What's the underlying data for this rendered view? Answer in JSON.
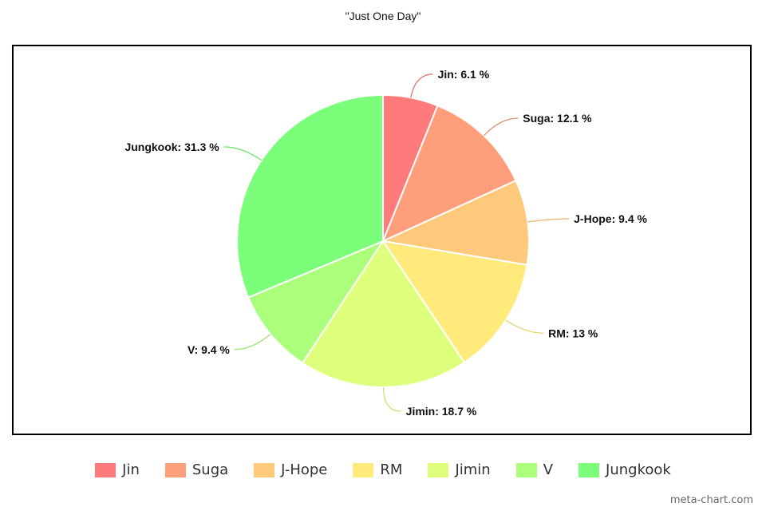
{
  "chart_data": {
    "type": "pie",
    "title": "\"Just One Day\"",
    "categories": [
      "Jin",
      "Suga",
      "J-Hope",
      "RM",
      "Jimin",
      "V",
      "Jungkook"
    ],
    "values": [
      6.1,
      12.1,
      9.4,
      13,
      18.7,
      9.4,
      31.3
    ],
    "labels": [
      "Jin: 6.1 %",
      "Suga: 12.1 %",
      "J-Hope: 9.4 %",
      "RM: 13 %",
      "Jimin: 18.7 %",
      "V: 9.4 %",
      "Jungkook: 31.3 %"
    ],
    "colors": [
      "#ff7b7b",
      "#ff9e7b",
      "#ffc97b",
      "#ffea7b",
      "#ddff7b",
      "#abff7b",
      "#7bff7b"
    ],
    "legend_position": "bottom"
  },
  "watermark": "meta-chart.com"
}
